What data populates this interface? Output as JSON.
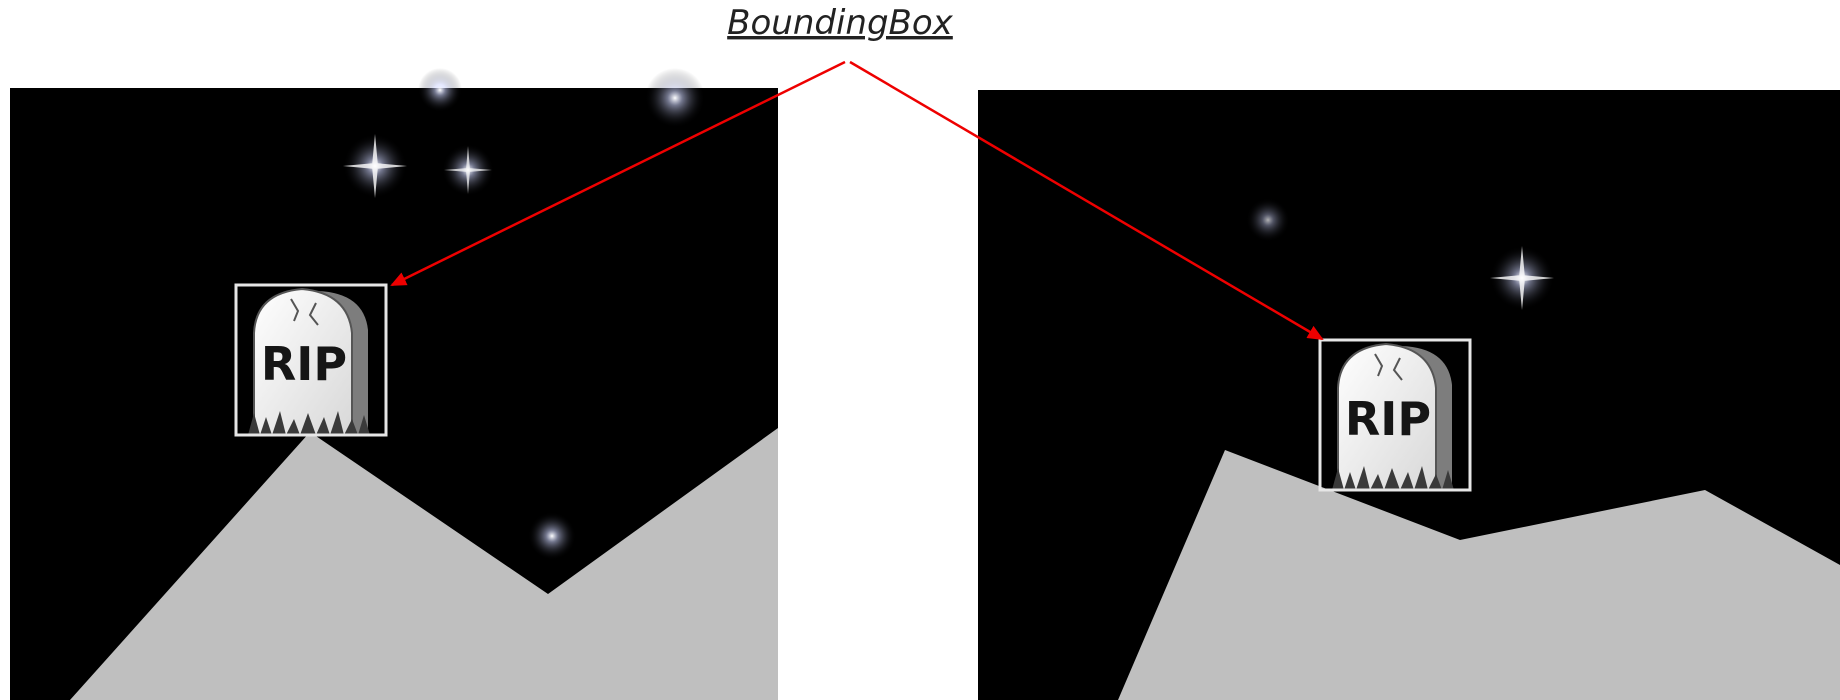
{
  "caption": "BoundingBox",
  "tombstone_text": "RIP",
  "colors": {
    "sky": "#000000",
    "ground": "#bfbfbf",
    "arrow": "#ee0000",
    "bbox_border": "#e6e6e6",
    "stone": "#eeeeee"
  },
  "panels": [
    {
      "name": "left-game-frame",
      "icon": "tombstone-icon"
    },
    {
      "name": "right-game-frame",
      "icon": "tombstone-icon"
    }
  ]
}
